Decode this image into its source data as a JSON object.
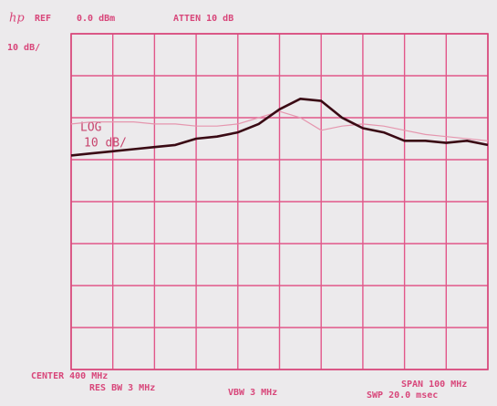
{
  "chart_data": {
    "type": "line",
    "logo": "hp",
    "ref_label": "REF",
    "ref_value": "0.0 dBm",
    "atten": "ATTEN 10 dB",
    "scale_label": "10 dB/",
    "log_label": "LOG",
    "log_scale": "10 dB/",
    "center": "CENTER 400 MHz",
    "res_bw": "RES BW 3 MHz",
    "vbw": "VBW 3 MHz",
    "span": "SPAN 100 MHz",
    "sweep": "SWP 20.0 msec",
    "x": [
      350,
      355,
      360,
      365,
      370,
      375,
      380,
      385,
      390,
      395,
      400,
      405,
      410,
      415,
      420,
      425,
      430,
      435,
      440,
      445,
      450
    ],
    "series": [
      {
        "color": "#3a0a14",
        "values": [
          -29,
          -28.5,
          -28,
          -27.5,
          -27,
          -26.5,
          -25,
          -24.5,
          -23.5,
          -21.5,
          -18,
          -15.5,
          -16,
          -20,
          -22.5,
          -23.5,
          -25.5,
          -25.5,
          -26,
          -25.5,
          -26.5
        ]
      },
      {
        "color": "#e596ae",
        "values": [
          -21.5,
          -21,
          -21,
          -21,
          -21.5,
          -21.5,
          -22,
          -22,
          -21.5,
          -20,
          -18.5,
          -20,
          -23,
          -22,
          -21.5,
          -22,
          -23,
          -24,
          -24.5,
          -25,
          -25.5
        ]
      }
    ],
    "xlim": [
      350,
      450
    ],
    "xticks": [
      350,
      360,
      370,
      380,
      390,
      400,
      410,
      420,
      430,
      440,
      450
    ],
    "ylim": [
      -80,
      0
    ],
    "yticks": [
      -80,
      -70,
      -60,
      -50,
      -40,
      -30,
      -20,
      -10,
      0
    ],
    "grid": true
  }
}
